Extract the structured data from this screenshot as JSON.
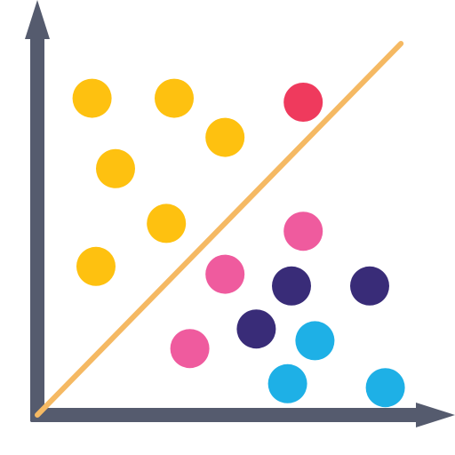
{
  "chart_data": {
    "type": "scatter",
    "title": "",
    "xlabel": "",
    "ylabel": "",
    "xlim": [
      0,
      10
    ],
    "ylim": [
      0,
      10
    ],
    "grid": false,
    "legend": "none",
    "axis_color": "#555B6E",
    "trend_line": {
      "color": "#F5B963",
      "from": [
        0,
        0
      ],
      "to": [
        9.3,
        9.5
      ]
    },
    "series": [
      {
        "color": "#FEC110",
        "points": [
          [
            1.4,
            8.1
          ],
          [
            3.5,
            8.1
          ],
          [
            4.8,
            7.1
          ],
          [
            2.0,
            6.3
          ],
          [
            3.3,
            4.9
          ],
          [
            1.5,
            3.8
          ]
        ]
      },
      {
        "color": "#EF3A5D",
        "points": [
          [
            6.8,
            8.0
          ]
        ]
      },
      {
        "color": "#EF5B9E",
        "points": [
          [
            6.8,
            4.7
          ],
          [
            4.8,
            3.6
          ],
          [
            3.9,
            1.7
          ]
        ]
      },
      {
        "color": "#392C78",
        "points": [
          [
            6.5,
            3.3
          ],
          [
            8.5,
            3.3
          ],
          [
            5.6,
            2.2
          ]
        ]
      },
      {
        "color": "#1EB0E6",
        "points": [
          [
            7.1,
            1.9
          ],
          [
            6.4,
            0.8
          ],
          [
            8.9,
            0.7
          ]
        ]
      }
    ]
  }
}
